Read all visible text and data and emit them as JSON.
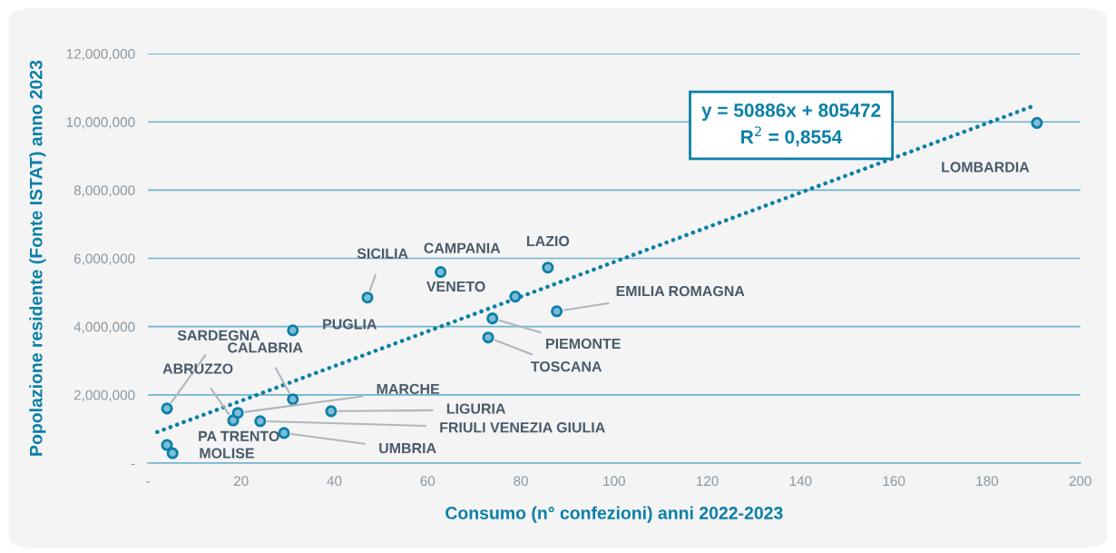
{
  "chart_data": {
    "type": "scatter",
    "xlabel": "Consumo (n° confezioni) anni 2022-2023",
    "ylabel": "Popolazione residente (Fonte ISTAT) anno 2023",
    "xlim": [
      0,
      200
    ],
    "xticks": [
      {
        "value": 0,
        "label": "-"
      },
      20,
      40,
      60,
      80,
      100,
      120,
      140,
      160,
      180,
      200
    ],
    "ylim": [
      0,
      12000000
    ],
    "yticks": [
      {
        "value": 0,
        "label": "-"
      },
      {
        "value": 2000000,
        "label": "2,000,000"
      },
      {
        "value": 4000000,
        "label": "4,000,000"
      },
      {
        "value": 6000000,
        "label": "6,000,000"
      },
      {
        "value": 8000000,
        "label": "8,000,000"
      },
      {
        "value": 10000000,
        "label": "10,000,000"
      },
      {
        "value": 12000000,
        "label": "12,000,000"
      }
    ],
    "grid": "y",
    "series": [
      {
        "marker": "circle",
        "color": "#0a7fa8",
        "x": [
          190.7,
          85.8,
          62.8,
          47.1,
          78.8,
          87.7,
          73.9,
          73.0,
          31.1,
          4.1,
          31.1,
          18.3,
          19.3,
          39.3,
          24.1,
          29.2,
          4.1,
          5.3
        ],
        "values": [
          9970000,
          5730000,
          5600000,
          4850000,
          4880000,
          4450000,
          4240000,
          3680000,
          3890000,
          1600000,
          1870000,
          1250000,
          1470000,
          1520000,
          1230000,
          880000,
          530000,
          290000
        ]
      },
      {
        "type": "line",
        "color": "#0a7fa8",
        "line_style": "dotted",
        "x": [
          2,
          190
        ],
        "values": [
          910000,
          10470000
        ]
      }
    ],
    "annotations": [
      {
        "text": "LOMBARDIA",
        "x": 190.7,
        "y": 9970000
      },
      {
        "text": "LAZIO",
        "x": 85.8,
        "y": 5730000
      },
      {
        "text": "CAMPANIA",
        "x": 62.8,
        "y": 5600000
      },
      {
        "text": "SICILIA",
        "x": 47.1,
        "y": 4850000
      },
      {
        "text": "VENETO",
        "x": 78.8,
        "y": 4880000
      },
      {
        "text": "EMILIA ROMAGNA",
        "x": 87.7,
        "y": 4450000
      },
      {
        "text": "PIEMONTE",
        "x": 73.9,
        "y": 4240000
      },
      {
        "text": "TOSCANA",
        "x": 73.0,
        "y": 3680000
      },
      {
        "text": "PUGLIA",
        "x": 31.1,
        "y": 3890000
      },
      {
        "text": "SARDEGNA",
        "x": 4.1,
        "y": 1600000
      },
      {
        "text": "CALABRIA",
        "x": 31.1,
        "y": 1870000
      },
      {
        "text": "ABRUZZO",
        "x": 18.3,
        "y": 1250000
      },
      {
        "text": "MARCHE",
        "x": 19.3,
        "y": 1470000
      },
      {
        "text": "LIGURIA",
        "x": 39.3,
        "y": 1520000
      },
      {
        "text": "FRIULI VENEZIA GIULIA",
        "x": 24.1,
        "y": 1230000
      },
      {
        "text": "UMBRIA",
        "x": 29.2,
        "y": 880000
      },
      {
        "text": "PA TRENTO",
        "x": 4.1,
        "y": 530000
      },
      {
        "text": "MOLISE",
        "x": 5.3,
        "y": 290000
      },
      "y = 50886x + 805472\nR$^{2}$ = 0,8554"
    ]
  }
}
